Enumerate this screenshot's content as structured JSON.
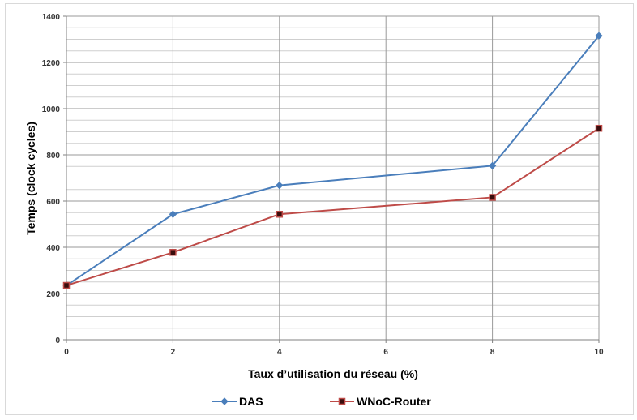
{
  "chart_data": {
    "type": "line",
    "title": "",
    "xlabel": "Taux d’utilisation du réseau (%)",
    "ylabel": "Temps (clock cycles)",
    "xlim": [
      0,
      10
    ],
    "ylim": [
      0,
      1400
    ],
    "x_ticks": [
      "0",
      "2",
      "4",
      "6",
      "8",
      "10"
    ],
    "y_ticks": [
      "0",
      "200",
      "400",
      "600",
      "800",
      "1000",
      "1200",
      "1400"
    ],
    "grid": true,
    "legend": "bottom",
    "series": [
      {
        "name": "DAS",
        "color": "#4a7ebb",
        "marker": "diamond",
        "x": [
          0,
          2,
          4,
          8,
          10
        ],
        "y": [
          235,
          543,
          668,
          753,
          1315
        ]
      },
      {
        "name": "WNoC-Router",
        "color": "#be4b48",
        "marker": "square",
        "x": [
          0,
          2,
          4,
          8,
          10
        ],
        "y": [
          235,
          378,
          543,
          616,
          915
        ]
      }
    ]
  }
}
